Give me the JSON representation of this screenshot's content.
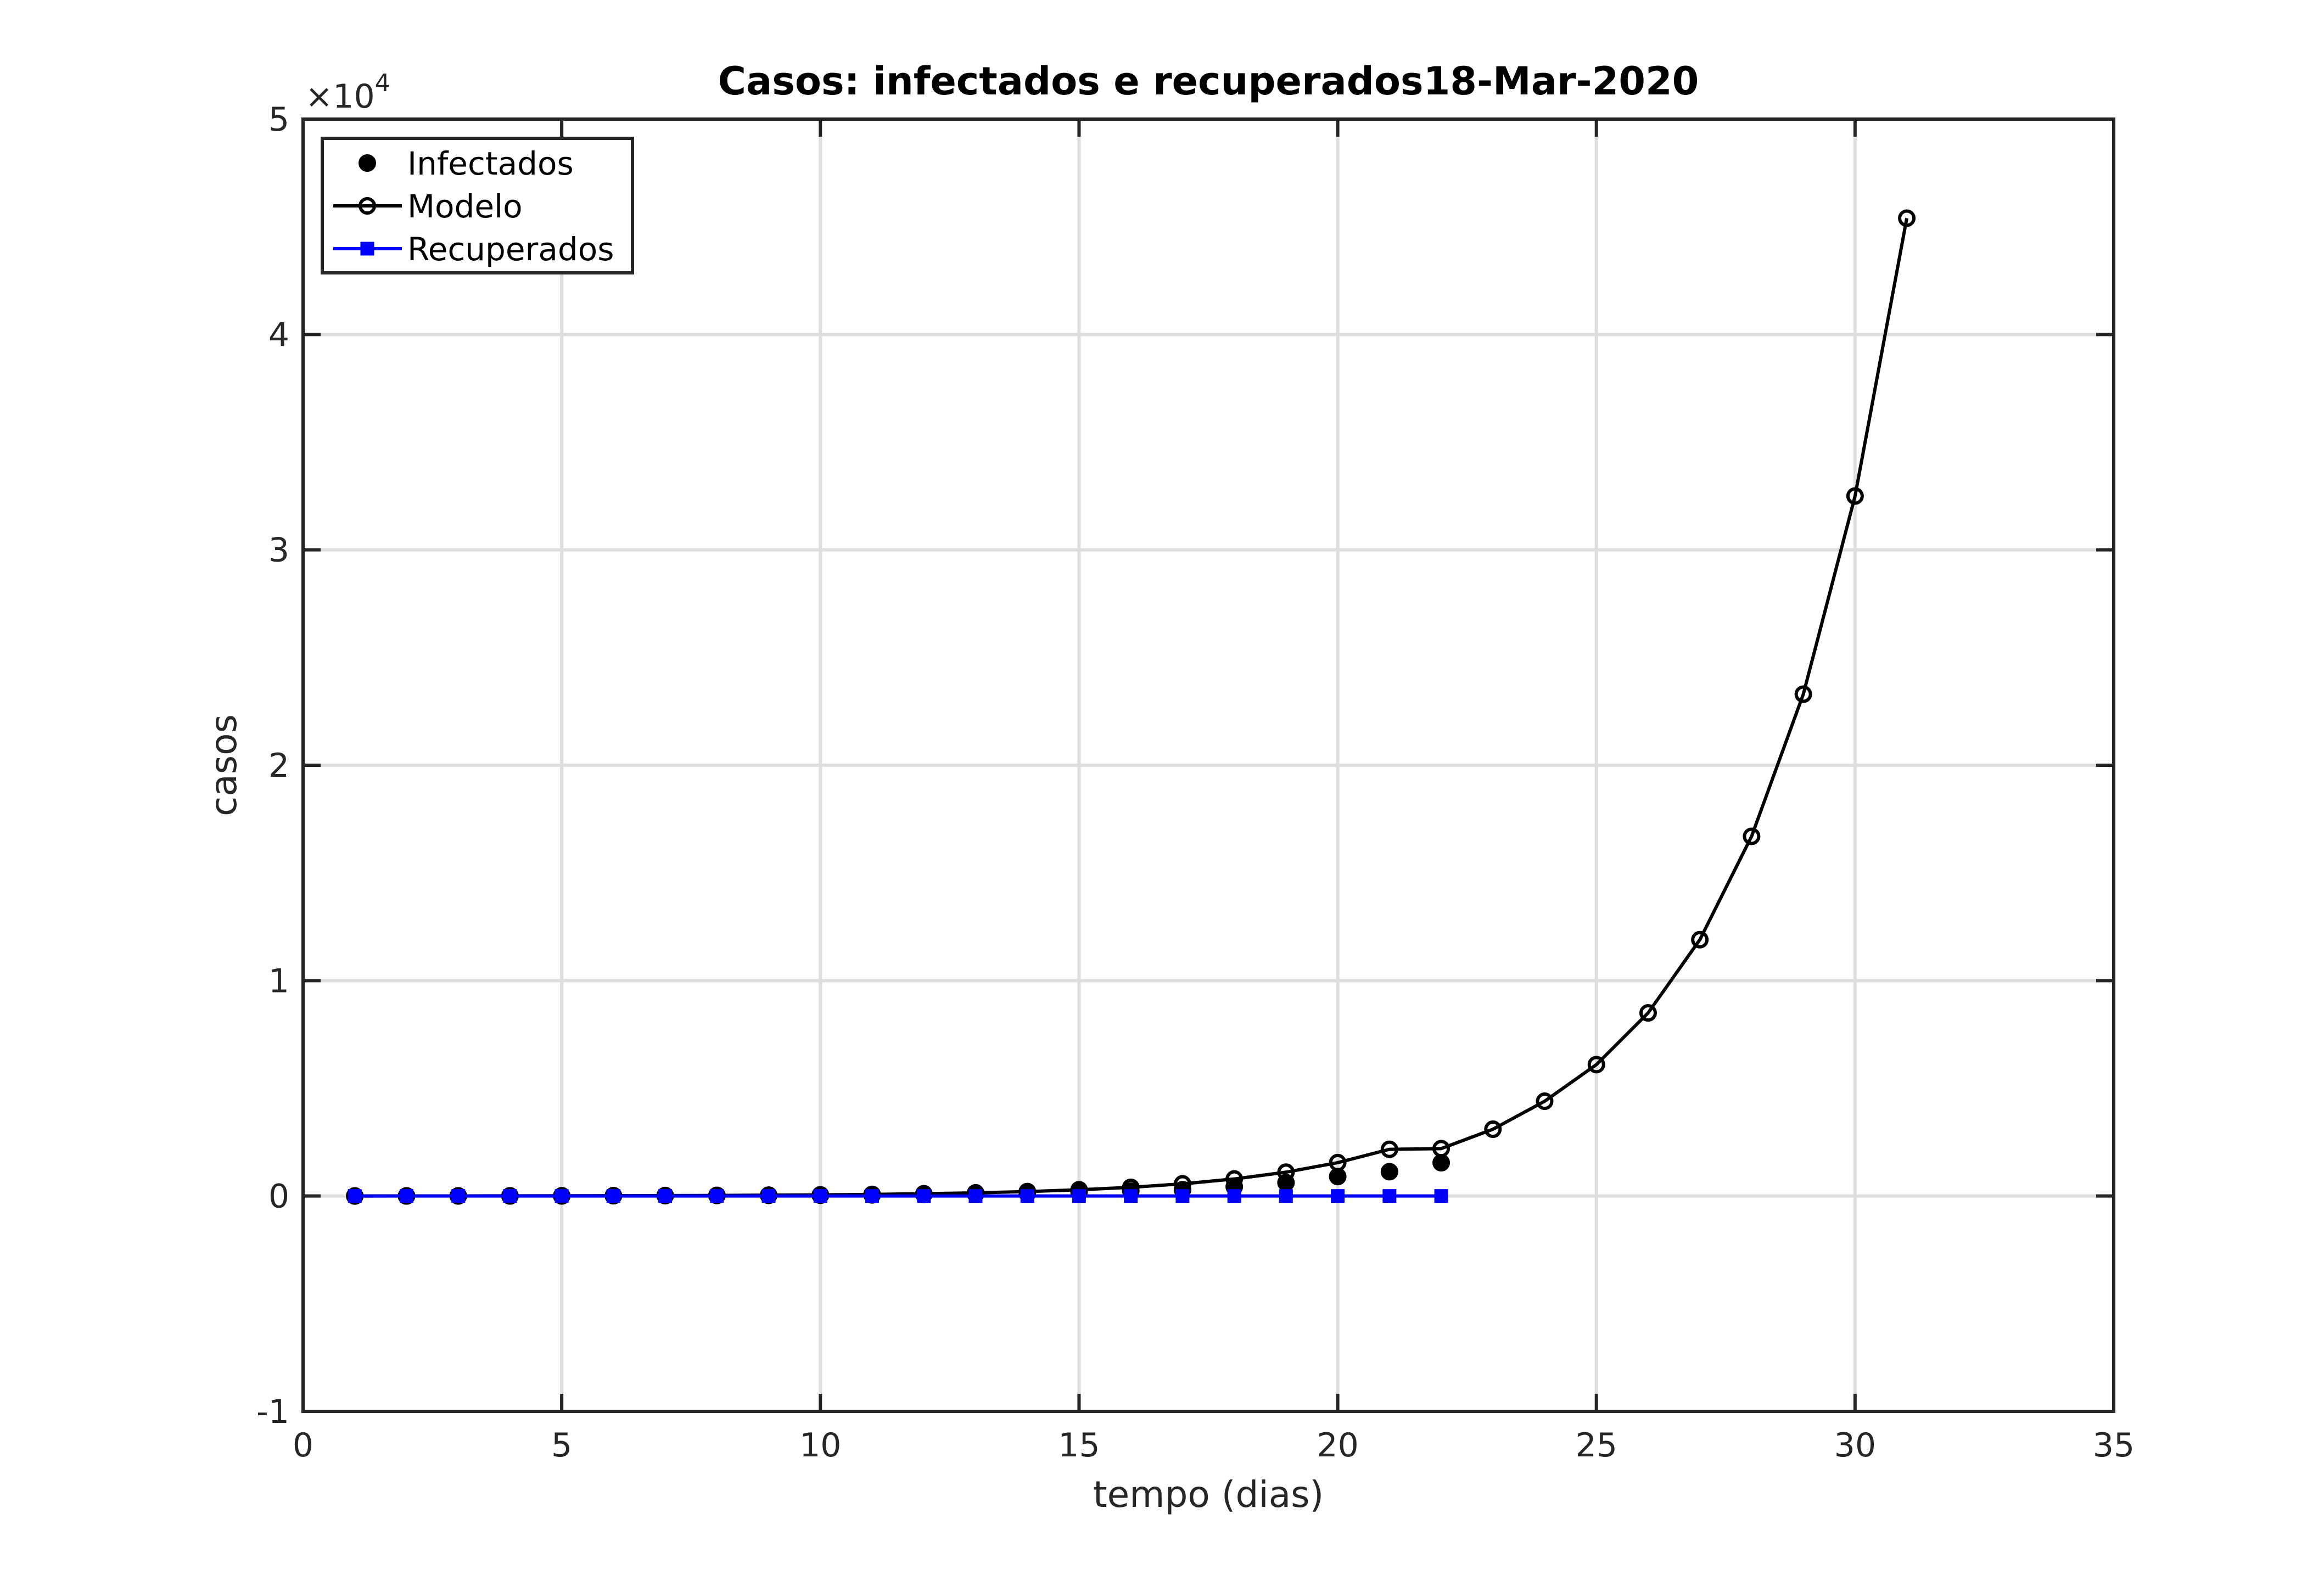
{
  "chart_data": {
    "type": "line",
    "title": "Casos: infectados e recuperados18-Mar-2020",
    "xlabel": "tempo (dias)",
    "ylabel": "casos",
    "y_exponent_label": "×10",
    "y_exponent_power": "4",
    "xlim": [
      0,
      35
    ],
    "ylim": [
      -10000,
      50000
    ],
    "x_ticks": [
      0,
      5,
      10,
      15,
      20,
      25,
      30,
      35
    ],
    "x_tick_labels": [
      "0",
      "5",
      "10",
      "15",
      "20",
      "25",
      "30",
      "35"
    ],
    "y_ticks": [
      -10000,
      0,
      10000,
      20000,
      30000,
      40000,
      50000
    ],
    "y_tick_labels": [
      "-1",
      "0",
      "1",
      "2",
      "3",
      "4",
      "5"
    ],
    "grid": true,
    "legend_position": "top-left",
    "series": [
      {
        "name": "Infectados",
        "color": "#000000",
        "marker": "filled-circle",
        "line": false,
        "x": [
          1,
          2,
          3,
          4,
          5,
          6,
          7,
          8,
          9,
          10,
          11,
          12,
          13,
          14,
          15,
          16,
          17,
          18,
          19,
          20,
          21,
          22
        ],
        "y": [
          2,
          2,
          3,
          4,
          4,
          13,
          20,
          25,
          31,
          34,
          52,
          77,
          98,
          121,
          200,
          234,
          291,
          428,
          621,
          904,
          1128,
          1546
        ]
      },
      {
        "name": "Modelo",
        "color": "#000000",
        "marker": "open-circle",
        "line": true,
        "x": [
          1,
          2,
          3,
          4,
          5,
          6,
          7,
          8,
          9,
          10,
          11,
          12,
          13,
          14,
          15,
          16,
          17,
          18,
          19,
          20,
          21,
          22,
          23,
          24,
          25,
          26,
          27,
          28,
          29,
          30,
          31
        ],
        "y": [
          2,
          3,
          5,
          7,
          10,
          14,
          19,
          27,
          38,
          53,
          75,
          105,
          147,
          206,
          288,
          403,
          564,
          790,
          1106,
          1548,
          2167,
          2200,
          3100,
          4400,
          6100,
          8500,
          11900,
          16700,
          23300,
          32500,
          45400
        ]
      },
      {
        "name": "Recuperados",
        "color": "#0000ff",
        "marker": "filled-square",
        "line": true,
        "x": [
          1,
          2,
          3,
          4,
          5,
          6,
          7,
          8,
          9,
          10,
          11,
          12,
          13,
          14,
          15,
          16,
          17,
          18,
          19,
          20,
          21,
          22
        ],
        "y": [
          0,
          0,
          0,
          0,
          0,
          0,
          0,
          0,
          0,
          0,
          0,
          0,
          0,
          0,
          0,
          0,
          0,
          0,
          0,
          0,
          0,
          0
        ]
      }
    ]
  }
}
